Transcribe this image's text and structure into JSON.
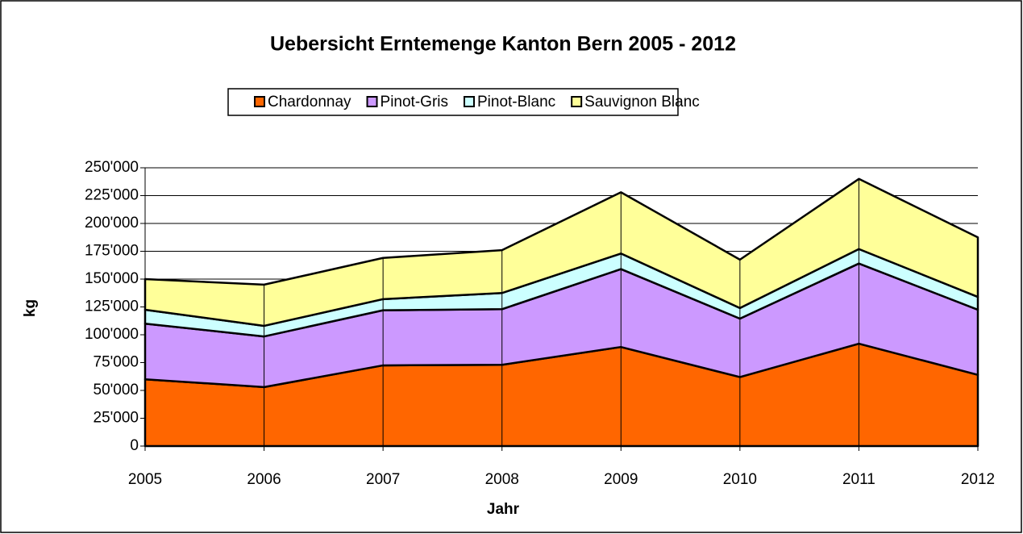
{
  "chart_data": {
    "type": "stacked-area",
    "title": "Uebersicht Erntemenge Kanton Bern 2005 - 2012",
    "x_label": "Jahr",
    "y_label": "kg",
    "categories": [
      "2005",
      "2006",
      "2007",
      "2008",
      "2009",
      "2010",
      "2011",
      "2012"
    ],
    "series": [
      {
        "name": "Chardonnay",
        "color": "#ff6600",
        "values": [
          60000,
          53000,
          72500,
          73000,
          89000,
          62000,
          92000,
          64000
        ]
      },
      {
        "name": "Pinot-Gris",
        "color": "#cc99ff",
        "values": [
          50000,
          45500,
          49500,
          50000,
          70000,
          52500,
          72000,
          58500
        ]
      },
      {
        "name": "Pinot-Blanc",
        "color": "#ccffff",
        "values": [
          12500,
          9500,
          10000,
          14500,
          14000,
          9500,
          13000,
          11500
        ]
      },
      {
        "name": "Sauvignon Blanc",
        "color": "#ffff99",
        "values": [
          27500,
          37000,
          37000,
          38500,
          55000,
          43500,
          63000,
          53500
        ]
      }
    ],
    "ylim": [
      0,
      250000
    ],
    "yticks": [
      0,
      {
        "value": 25000,
        "label": "25'000"
      },
      {
        "value": 50000,
        "label": "50'000"
      },
      {
        "value": 75000,
        "label": "75'000"
      },
      {
        "value": 100000,
        "label": "100'000"
      },
      {
        "value": 125000,
        "label": "125'000"
      },
      {
        "value": 150000,
        "label": "150'000"
      },
      {
        "value": 175000,
        "label": "175'000"
      },
      {
        "value": 200000,
        "label": "200'000"
      },
      {
        "value": 225000,
        "label": "225'000"
      },
      {
        "value": 250000,
        "label": "250'000"
      }
    ],
    "grid": true,
    "legend": "top"
  }
}
